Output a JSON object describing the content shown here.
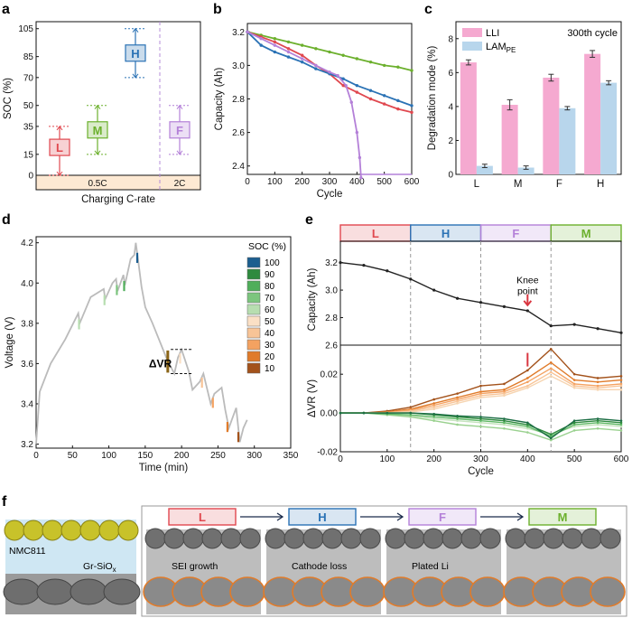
{
  "panels": {
    "a": "a",
    "b": "b",
    "c": "c",
    "d": "d",
    "e": "e",
    "f": "f"
  },
  "colors": {
    "L": "#e0484f",
    "M": "#6cb02d",
    "H": "#2a72b5",
    "F": "#b480d8",
    "LLI": "#f5a9d0",
    "LAM": "#b8d6ec",
    "cap": "#222222",
    "arrow": "#d93640"
  },
  "chart_data": [
    {
      "panel": "a",
      "type": "range",
      "xlabel": "Charging C-rate",
      "ylabel": "SOC (%)",
      "yticks": [
        "0",
        "15",
        "35",
        "50",
        "70",
        "85",
        "105"
      ],
      "ylim": [
        0,
        110
      ],
      "rate_labels": [
        "0.5C",
        "2C"
      ],
      "boxes": [
        {
          "label": "L",
          "center": 20,
          "low": 0,
          "high": 35
        },
        {
          "label": "M",
          "center": 32.5,
          "low": 15,
          "high": 50
        },
        {
          "label": "H",
          "center": 87.5,
          "low": 70,
          "high": 105
        },
        {
          "label": "F",
          "center": 32.5,
          "low": 15,
          "high": 50
        }
      ]
    },
    {
      "panel": "b",
      "type": "line",
      "xlabel": "Cycle",
      "ylabel": "Capacity (Ah)",
      "xlim": [
        0,
        600
      ],
      "ylim": [
        2.35,
        3.25
      ],
      "xticks": [
        "0",
        "100",
        "200",
        "300",
        "400",
        "500",
        "600"
      ],
      "yticks": [
        "2.4",
        "2.6",
        "2.8",
        "3.0",
        "3.2"
      ],
      "series": [
        {
          "name": "M",
          "x": [
            0,
            50,
            100,
            150,
            200,
            250,
            300,
            350,
            400,
            450,
            500,
            550,
            600
          ],
          "y": [
            3.2,
            3.18,
            3.16,
            3.14,
            3.12,
            3.1,
            3.08,
            3.06,
            3.04,
            3.02,
            3.0,
            2.99,
            2.97
          ]
        },
        {
          "name": "L",
          "x": [
            0,
            50,
            100,
            150,
            200,
            250,
            300,
            350,
            400,
            450,
            500,
            550,
            600
          ],
          "y": [
            3.2,
            3.17,
            3.14,
            3.1,
            3.06,
            3.0,
            2.95,
            2.88,
            2.84,
            2.8,
            2.77,
            2.74,
            2.72
          ]
        },
        {
          "name": "H",
          "x": [
            0,
            50,
            100,
            150,
            200,
            250,
            300,
            350,
            400,
            450,
            500,
            550,
            600
          ],
          "y": [
            3.2,
            3.12,
            3.08,
            3.05,
            3.02,
            2.98,
            2.95,
            2.92,
            2.88,
            2.85,
            2.82,
            2.79,
            2.76
          ]
        },
        {
          "name": "F",
          "x": [
            0,
            50,
            100,
            150,
            200,
            250,
            300,
            330,
            360,
            380,
            400,
            410,
            415
          ],
          "y": [
            3.2,
            3.16,
            3.12,
            3.08,
            3.04,
            3.0,
            2.96,
            2.94,
            2.88,
            2.78,
            2.6,
            2.45,
            2.33
          ]
        }
      ]
    },
    {
      "panel": "c",
      "type": "bar",
      "xlabel": "",
      "ylabel": "Degradation mode (%)",
      "ylim": [
        0,
        9
      ],
      "yticks": [
        "0",
        "2",
        "4",
        "6",
        "8"
      ],
      "categories": [
        "L",
        "M",
        "F",
        "H"
      ],
      "annotation": "300th cycle",
      "series": [
        {
          "name": "LLI",
          "values": [
            6.6,
            4.1,
            5.7,
            7.1
          ],
          "errors": [
            0.15,
            0.3,
            0.2,
            0.2
          ]
        },
        {
          "name": "LAMPE",
          "values": [
            0.5,
            0.4,
            3.9,
            5.4
          ],
          "errors": [
            0.1,
            0.1,
            0.1,
            0.12
          ]
        }
      ],
      "legend": [
        "LLI",
        "LAM"
      ],
      "legend_sub": "PE"
    },
    {
      "panel": "d",
      "type": "line",
      "xlabel": "Time (min)",
      "ylabel": "Voltage (V)",
      "xlim": [
        0,
        350
      ],
      "ylim": [
        3.18,
        4.23
      ],
      "xticks": [
        "0",
        "50",
        "100",
        "150",
        "200",
        "250",
        "300",
        "350"
      ],
      "yticks": [
        "3.2",
        "3.4",
        "3.6",
        "3.8",
        "4.0",
        "4.2"
      ],
      "legend_title": "SOC (%)",
      "legend": [
        "100",
        "90",
        "80",
        "70",
        "60",
        "50",
        "40",
        "30",
        "20",
        "10"
      ],
      "annotation": "ΔVR",
      "base_curve": {
        "x": [
          0,
          5,
          20,
          40,
          58,
          60,
          75,
          93,
          95,
          105,
          110,
          112,
          120,
          122,
          130,
          135,
          137,
          140,
          145,
          150,
          160,
          170,
          180,
          190,
          195,
          200,
          210,
          215,
          225,
          230,
          240,
          245,
          255,
          260,
          265,
          270,
          275,
          280,
          285,
          290
        ],
        "y": [
          3.2,
          3.46,
          3.6,
          3.72,
          3.85,
          3.8,
          3.93,
          3.97,
          3.92,
          4.0,
          4.02,
          3.96,
          4.04,
          3.99,
          4.12,
          4.14,
          4.2,
          4.12,
          3.98,
          3.88,
          3.8,
          3.71,
          3.62,
          3.55,
          3.63,
          3.67,
          3.56,
          3.47,
          3.51,
          3.55,
          3.4,
          3.45,
          3.48,
          3.37,
          3.28,
          3.33,
          3.38,
          3.21,
          3.28,
          3.32
        ]
      }
    },
    {
      "panel": "e",
      "type": "line",
      "xlabel": "Cycle",
      "ylabel_top": "Capacity (Ah)",
      "ylabel_bottom": "ΔVR (V)",
      "xlim": [
        0,
        600
      ],
      "xticks": [
        "0",
        "100",
        "200",
        "300",
        "400",
        "500",
        "600"
      ],
      "ylim_top": [
        2.6,
        3.25
      ],
      "yticks_top": [
        "2.6",
        "2.8",
        "3.0",
        "3.2"
      ],
      "ylim_bottom": [
        -0.02,
        0.035
      ],
      "yticks_bottom": [
        "-0.02",
        "0.00",
        "0.02"
      ],
      "phases": [
        "L",
        "H",
        "F",
        "M"
      ],
      "knee_label": [
        "Knee",
        "point"
      ],
      "capacity": {
        "x": [
          0,
          50,
          100,
          150,
          200,
          250,
          300,
          350,
          400,
          450,
          500,
          550,
          600
        ],
        "y": [
          3.2,
          3.18,
          3.14,
          3.08,
          3.0,
          2.94,
          2.91,
          2.88,
          2.85,
          2.74,
          2.75,
          2.72,
          2.69
        ]
      },
      "dvr": [
        {
          "name": "10",
          "x": [
            0,
            50,
            100,
            150,
            200,
            250,
            300,
            350,
            400,
            450,
            500,
            550,
            600
          ],
          "y": [
            0,
            0,
            0.001,
            0.003,
            0.007,
            0.01,
            0.014,
            0.015,
            0.022,
            0.033,
            0.02,
            0.018,
            0.019
          ]
        },
        {
          "name": "20",
          "x": [
            0,
            50,
            100,
            150,
            200,
            250,
            300,
            350,
            400,
            450,
            500,
            550,
            600
          ],
          "y": [
            0,
            0,
            0.0005,
            0.002,
            0.005,
            0.008,
            0.011,
            0.012,
            0.018,
            0.026,
            0.017,
            0.016,
            0.017
          ]
        },
        {
          "name": "30",
          "x": [
            0,
            50,
            100,
            150,
            200,
            250,
            300,
            350,
            400,
            450,
            500,
            550,
            600
          ],
          "y": [
            0,
            0,
            0.0003,
            0.0015,
            0.004,
            0.007,
            0.01,
            0.011,
            0.016,
            0.023,
            0.015,
            0.014,
            0.015
          ]
        },
        {
          "name": "40",
          "x": [
            0,
            50,
            100,
            150,
            200,
            250,
            300,
            350,
            400,
            450,
            500,
            550,
            600
          ],
          "y": [
            0,
            0,
            0,
            0.001,
            0.003,
            0.006,
            0.009,
            0.01,
            0.014,
            0.021,
            0.014,
            0.013,
            0.014
          ]
        },
        {
          "name": "50",
          "x": [
            0,
            50,
            100,
            150,
            200,
            250,
            300,
            350,
            400,
            450,
            500,
            550,
            600
          ],
          "y": [
            0,
            0,
            0,
            0.0005,
            0.002,
            0.005,
            0.008,
            0.009,
            0.013,
            0.019,
            0.013,
            0.012,
            0.012
          ]
        },
        {
          "name": "60",
          "x": [
            0,
            50,
            100,
            150,
            200,
            250,
            300,
            350,
            400,
            450,
            500,
            550,
            600
          ],
          "y": [
            0,
            0,
            -0.0005,
            -0.0015,
            -0.003,
            -0.004,
            -0.005,
            -0.006,
            -0.008,
            -0.011,
            -0.007,
            -0.006,
            -0.007
          ]
        },
        {
          "name": "70",
          "x": [
            0,
            50,
            100,
            150,
            200,
            250,
            300,
            350,
            400,
            450,
            500,
            550,
            600
          ],
          "y": [
            0,
            0,
            -0.001,
            -0.002,
            -0.004,
            -0.006,
            -0.007,
            -0.008,
            -0.01,
            -0.014,
            -0.009,
            -0.008,
            -0.009
          ]
        },
        {
          "name": "80",
          "x": [
            0,
            50,
            100,
            150,
            200,
            250,
            300,
            350,
            400,
            450,
            500,
            550,
            600
          ],
          "y": [
            0,
            0,
            -0.0005,
            -0.001,
            -0.002,
            -0.003,
            -0.004,
            -0.005,
            -0.007,
            -0.012,
            -0.006,
            -0.005,
            -0.006
          ]
        },
        {
          "name": "90",
          "x": [
            0,
            50,
            100,
            150,
            200,
            250,
            300,
            350,
            400,
            450,
            500,
            550,
            600
          ],
          "y": [
            0,
            0,
            0,
            0,
            -0.001,
            -0.002,
            -0.003,
            -0.004,
            -0.006,
            -0.011,
            -0.005,
            -0.004,
            -0.005
          ]
        },
        {
          "name": "100",
          "x": [
            0,
            50,
            100,
            150,
            200,
            250,
            300,
            350,
            400,
            450,
            500,
            550,
            600
          ],
          "y": [
            0,
            0,
            0,
            0,
            -0.0005,
            -0.0015,
            -0.002,
            -0.003,
            -0.005,
            -0.013,
            -0.004,
            -0.003,
            -0.004
          ]
        }
      ]
    }
  ],
  "schematic": {
    "sequence": [
      "L",
      "H",
      "F",
      "M"
    ],
    "labels": {
      "cathode": "NMC811",
      "anode": "Gr-SiO",
      "anode_sub": "x",
      "sei": "SEI growth",
      "cathode_loss": "Cathode loss",
      "plated": "Plated Li"
    }
  }
}
